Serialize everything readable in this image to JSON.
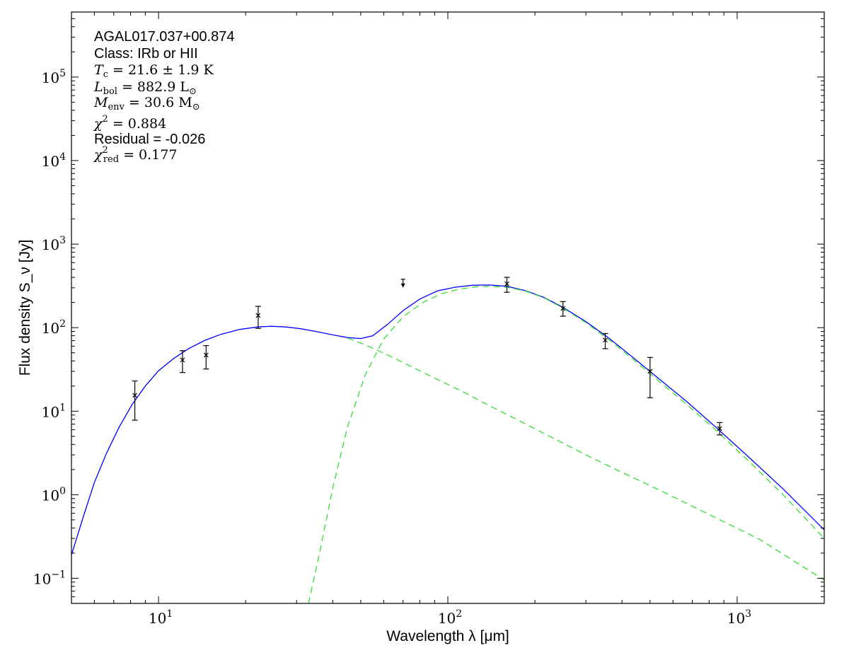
{
  "chart_data": {
    "type": "line",
    "title": "",
    "xlabel": "Wavelength λ [μm]",
    "ylabel": "Flux density S_ν [Jy]",
    "x_scale": "log",
    "y_scale": "log",
    "xlim": [
      5,
      2000
    ],
    "ylim": [
      0.05,
      600000
    ],
    "grid": false,
    "x_ticks": [
      {
        "base": "10",
        "exp": "1",
        "value": 10
      },
      {
        "base": "10",
        "exp": "2",
        "value": 100
      },
      {
        "base": "10",
        "exp": "3",
        "value": 1000
      }
    ],
    "y_ticks": [
      {
        "base": "10",
        "exp": "−1",
        "value": 0.1
      },
      {
        "base": "10",
        "exp": "0",
        "value": 1
      },
      {
        "base": "10",
        "exp": "1",
        "value": 10
      },
      {
        "base": "10",
        "exp": "2",
        "value": 100
      },
      {
        "base": "10",
        "exp": "3",
        "value": 1000
      },
      {
        "base": "10",
        "exp": "4",
        "value": 10000
      },
      {
        "base": "10",
        "exp": "5",
        "value": 100000
      }
    ],
    "annotations": {
      "source_name": "AGAL017.037+00.874",
      "class_text": "Class: IRb or HII",
      "tc": {
        "sym": "T",
        "sub": "c",
        "rest": " = 21.6 ± 1.9 K"
      },
      "lbol": {
        "sym": "L",
        "sub": "bol",
        "rest": " = 882.9 L",
        "unit_sub": "⊙"
      },
      "menv": {
        "sym": "M",
        "sub": "env",
        "rest": " = 30.6 M",
        "unit_sub": "⊙"
      },
      "chi2": {
        "sym": "χ",
        "sup": "2",
        "rest": " = 0.884"
      },
      "residual": "Residual = -0.026",
      "chi2red": {
        "sym": "χ",
        "sup": "2",
        "sub": "red",
        "rest": " = 0.177"
      }
    },
    "series": [
      {
        "color": "#0000ff",
        "style": "solid",
        "x": [
          5.0,
          5.5,
          6.0,
          6.6,
          7.3,
          8.1,
          9.0,
          10.0,
          11.3,
          12.7,
          14.4,
          16.4,
          19.0,
          22.0,
          24.5,
          27.5,
          31.0,
          35.0,
          40.0,
          45.0,
          50.0,
          55.0,
          62.0,
          70.0,
          80.0,
          92.0,
          106.0,
          122.0,
          140.0,
          160.0,
          185.0,
          215.0,
          250.0,
          300.0,
          360.0,
          440.0,
          540.0,
          670.0,
          850.0,
          1100.0,
          1450.0,
          2000.0
        ],
        "y": [
          0.19,
          0.55,
          1.4,
          3.1,
          6.4,
          12.0,
          20.0,
          30.5,
          43.0,
          56.0,
          70.0,
          83.0,
          95.0,
          102.0,
          104.0,
          102.0,
          97.0,
          90.0,
          82.0,
          76.0,
          74.0,
          80.0,
          110.0,
          160.0,
          220.0,
          275.0,
          305.0,
          322.0,
          324.0,
          312.0,
          278.0,
          230.0,
          175.0,
          118.0,
          75.0,
          43.0,
          24.0,
          13.0,
          6.3,
          2.8,
          1.15,
          0.38
        ]
      },
      {
        "color": "#33dd33",
        "style": "dashed",
        "x": [
          45.0,
          52.0,
          62.0,
          75.0,
          92.0,
          115.0,
          140.0,
          175.0,
          220.0,
          300.0,
          400.0,
          550.0,
          800.0,
          1200.0,
          2000.0
        ],
        "y": [
          75.0,
          62.0,
          47.0,
          34.0,
          24.0,
          16.5,
          11.5,
          7.8,
          5.2,
          3.0,
          1.85,
          1.1,
          0.58,
          0.29,
          0.095
        ]
      },
      {
        "color": "#33dd33",
        "style": "dashed",
        "x": [
          33.0,
          36.0,
          40.0,
          45.0,
          52.0,
          60.0,
          70.0,
          82.0,
          95.0,
          110.0,
          125.0,
          140.0,
          160.0,
          185.0,
          215.0,
          250.0,
          300.0,
          360.0,
          440.0,
          540.0,
          670.0,
          850.0,
          1100.0,
          1450.0,
          2000.0
        ],
        "y": [
          0.05,
          0.2,
          1.2,
          6.5,
          28.0,
          73.0,
          135.0,
          200.0,
          255.0,
          290.0,
          308.0,
          312.0,
          305.0,
          275.0,
          228.0,
          172.0,
          115.0,
          72.0,
          41.0,
          22.5,
          12.0,
          5.8,
          2.5,
          0.98,
          0.3
        ]
      }
    ],
    "points": [
      {
        "x": 8.28,
        "y": 15.5,
        "ylo": 7.8,
        "yhi": 23.0
      },
      {
        "x": 12.1,
        "y": 41.0,
        "ylo": 29.0,
        "yhi": 53.0
      },
      {
        "x": 14.6,
        "y": 47.0,
        "ylo": 32.0,
        "yhi": 61.0
      },
      {
        "x": 22.1,
        "y": 140.0,
        "ylo": 98.0,
        "yhi": 180.0
      },
      {
        "x": 160.0,
        "y": 335.0,
        "ylo": 265.0,
        "yhi": 400.0
      },
      {
        "x": 250.0,
        "y": 170.0,
        "ylo": 137.0,
        "yhi": 205.0
      },
      {
        "x": 350.0,
        "y": 71.0,
        "ylo": 56.0,
        "yhi": 85.0
      },
      {
        "x": 500.0,
        "y": 30.0,
        "ylo": 14.5,
        "yhi": 44.0
      },
      {
        "x": 870.0,
        "y": 6.2,
        "ylo": 5.2,
        "yhi": 7.3
      }
    ],
    "upper_limits": [
      {
        "x": 70.0,
        "y": 380.0
      }
    ]
  }
}
